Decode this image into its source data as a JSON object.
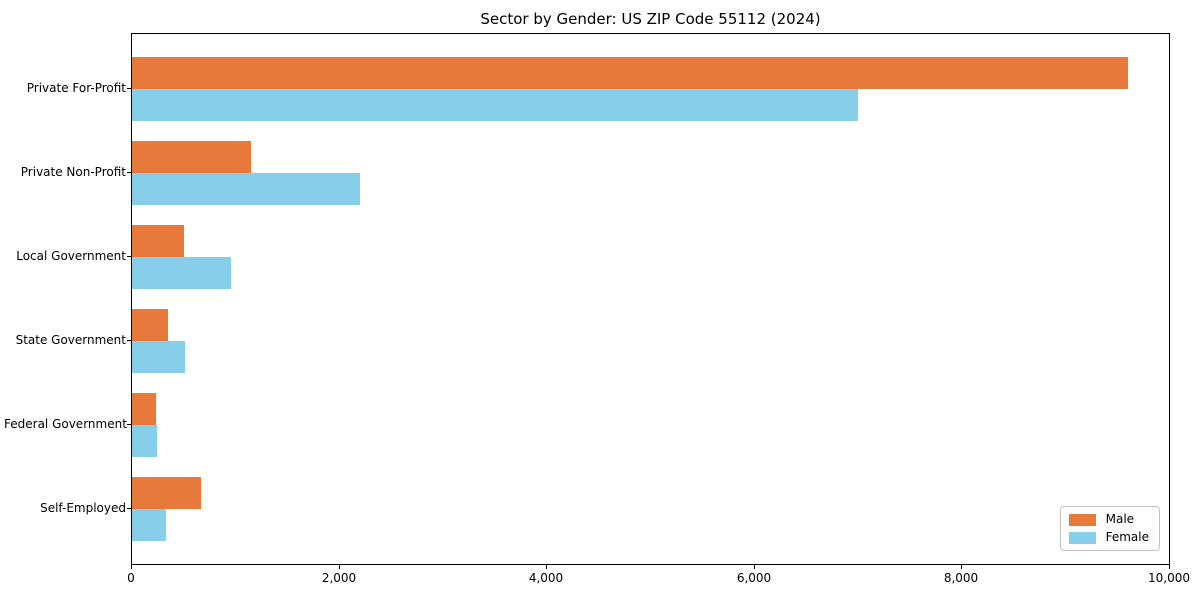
{
  "chart_data": {
    "type": "bar",
    "orientation": "horizontal",
    "title": "Sector by Gender: US ZIP Code 55112 (2024)",
    "categories": [
      "Private For-Profit",
      "Private Non-Profit",
      "Local Government",
      "State Government",
      "Federal Government",
      "Self-Employed"
    ],
    "series": [
      {
        "name": "Male",
        "color": "#e8793d",
        "values": [
          9600,
          1150,
          500,
          350,
          230,
          670
        ]
      },
      {
        "name": "Female",
        "color": "#87ceeb",
        "values": [
          7000,
          2200,
          950,
          510,
          240,
          330
        ]
      }
    ],
    "xlabel": "",
    "ylabel": "",
    "xlim": [
      0,
      10000
    ],
    "xticks": [
      0,
      2000,
      4000,
      6000,
      8000,
      10000
    ],
    "xtick_labels": [
      "0",
      "2,000",
      "4,000",
      "6,000",
      "8,000",
      "10,000"
    ],
    "legend_position": "lower right",
    "grid": false,
    "spine_box": true
  }
}
